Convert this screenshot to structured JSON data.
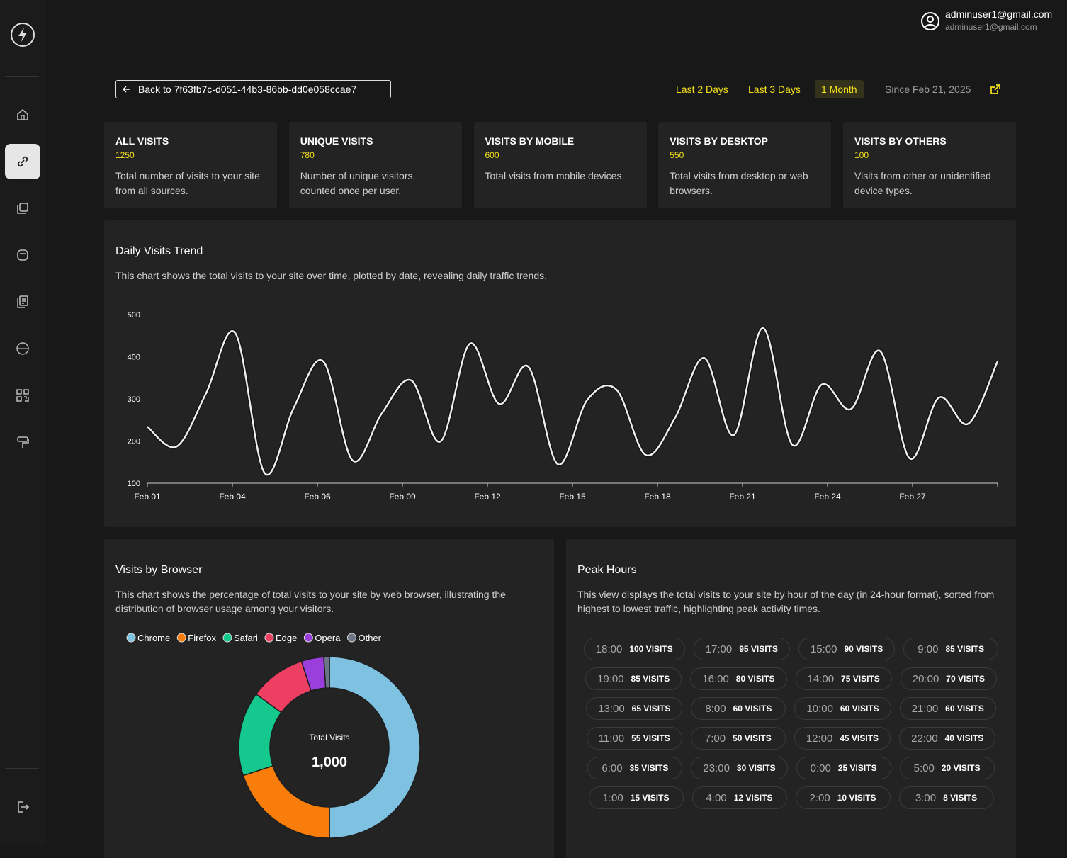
{
  "user": {
    "name": "adminuser1@gmail.com",
    "email": "adminuser1@gmail.com"
  },
  "back_button": "Back to 7f63fb7c-d051-44b3-86bb-dd0e058ccae7",
  "ranges": [
    {
      "label": "Last 2 Days",
      "active": false
    },
    {
      "label": "Last 3 Days",
      "active": false
    },
    {
      "label": "1 Month",
      "active": true
    }
  ],
  "since": "Since Feb 21, 2025",
  "stats": [
    {
      "title": "ALL VISITS",
      "value": "1250",
      "description": "Total number of visits to your site from all sources."
    },
    {
      "title": "UNIQUE VISITS",
      "value": "780",
      "description": "Number of unique visitors, counted once per user."
    },
    {
      "title": "VISITS BY MOBILE",
      "value": "600",
      "description": "Total visits from mobile devices."
    },
    {
      "title": "VISITS BY DESKTOP",
      "value": "550",
      "description": "Total visits from desktop or web browsers."
    },
    {
      "title": "VISITS BY OTHERS",
      "value": "100",
      "description": "Visits from other or unidentified device types."
    }
  ],
  "trend": {
    "title": "Daily Visits Trend",
    "description": "This chart shows the total visits to your site over time, plotted by date, revealing daily traffic trends.",
    "chart_data": {
      "type": "line",
      "color": "#eeeeee",
      "x": [
        0,
        1,
        2,
        3,
        4,
        5,
        6,
        7,
        8,
        9,
        10,
        11,
        12,
        13,
        14,
        15,
        16,
        17,
        18,
        19,
        20,
        21,
        22,
        23,
        24,
        25,
        26,
        27,
        28,
        29
      ],
      "values": [
        234,
        187,
        313,
        456,
        124,
        280,
        389,
        154,
        266,
        344,
        199,
        431,
        288,
        376,
        145,
        297,
        322,
        167,
        255,
        397,
        214,
        468,
        191,
        334,
        276,
        413,
        159,
        303,
        241,
        389
      ],
      "xlim": [
        0,
        29
      ],
      "xticks": [
        {
          "value": 0,
          "label": "Feb 01"
        },
        {
          "value": 2.9,
          "label": "Feb 04"
        },
        {
          "value": 5.8,
          "label": "Feb 06"
        },
        {
          "value": 8.7,
          "label": "Feb 09"
        },
        {
          "value": 11.6,
          "label": "Feb 12"
        },
        {
          "value": 14.5,
          "label": "Feb 15"
        },
        {
          "value": 17.4,
          "label": "Feb 18"
        },
        {
          "value": 20.3,
          "label": "Feb 21"
        },
        {
          "value": 23.2,
          "label": "Feb 24"
        },
        {
          "value": 26.1,
          "label": "Feb 27"
        }
      ],
      "ylim": [
        100,
        500
      ],
      "yticks": [
        100,
        200,
        300,
        400,
        500
      ],
      "grid": false
    }
  },
  "browser": {
    "title": "Visits by Browser",
    "description": "This chart shows the percentage of total visits to your site by web browser, illustrating the distribution of browser usage among your visitors.",
    "chart_data": {
      "type": "donut",
      "categories": [
        "Chrome",
        "Firefox",
        "Safari",
        "Edge",
        "Opera",
        "Other"
      ],
      "values": [
        500,
        200,
        150,
        100,
        40,
        10
      ],
      "colors": [
        "#7fc1e0",
        "#f97d0a",
        "#15c98e",
        "#ec3f62",
        "#9a3fdb",
        "#6b7689"
      ],
      "center_title": "Total Visits",
      "center_value": "1,000"
    }
  },
  "peak": {
    "title": "Peak Hours",
    "description": "This view displays the total visits to your site by hour of the day (in 24-hour format), sorted from highest to lowest traffic, highlighting peak activity times.",
    "items": [
      {
        "hour": "18:00",
        "visits": "100 VISITS"
      },
      {
        "hour": "17:00",
        "visits": "95 VISITS"
      },
      {
        "hour": "15:00",
        "visits": "90 VISITS"
      },
      {
        "hour": "9:00",
        "visits": "85 VISITS"
      },
      {
        "hour": "19:00",
        "visits": "85 VISITS"
      },
      {
        "hour": "16:00",
        "visits": "80 VISITS"
      },
      {
        "hour": "14:00",
        "visits": "75 VISITS"
      },
      {
        "hour": "20:00",
        "visits": "70 VISITS"
      },
      {
        "hour": "13:00",
        "visits": "65 VISITS"
      },
      {
        "hour": "8:00",
        "visits": "60 VISITS"
      },
      {
        "hour": "10:00",
        "visits": "60 VISITS"
      },
      {
        "hour": "21:00",
        "visits": "60 VISITS"
      },
      {
        "hour": "11:00",
        "visits": "55 VISITS"
      },
      {
        "hour": "7:00",
        "visits": "50 VISITS"
      },
      {
        "hour": "12:00",
        "visits": "45 VISITS"
      },
      {
        "hour": "22:00",
        "visits": "40 VISITS"
      },
      {
        "hour": "6:00",
        "visits": "35 VISITS"
      },
      {
        "hour": "23:00",
        "visits": "30 VISITS"
      },
      {
        "hour": "0:00",
        "visits": "25 VISITS"
      },
      {
        "hour": "5:00",
        "visits": "20 VISITS"
      },
      {
        "hour": "1:00",
        "visits": "15 VISITS"
      },
      {
        "hour": "4:00",
        "visits": "12 VISITS"
      },
      {
        "hour": "2:00",
        "visits": "10 VISITS"
      },
      {
        "hour": "3:00",
        "visits": "8 VISITS"
      }
    ]
  }
}
